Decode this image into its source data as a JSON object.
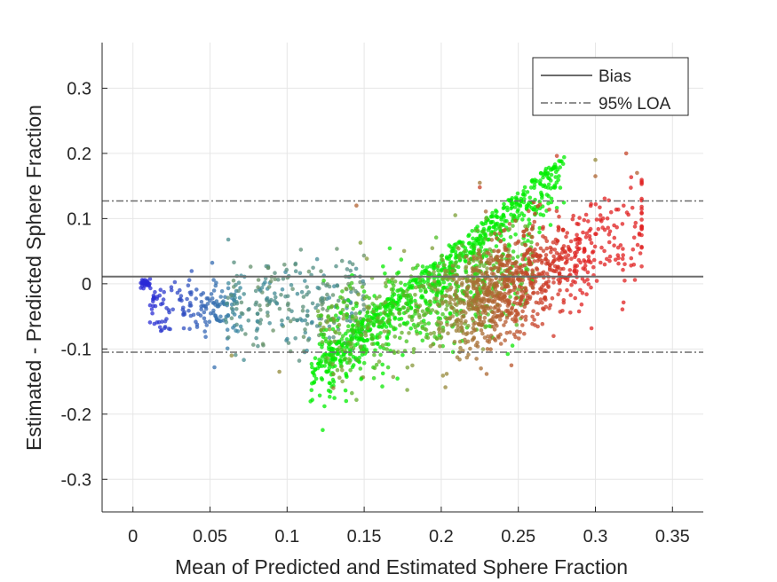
{
  "chart_data": {
    "type": "scatter",
    "title": "",
    "xlabel": "Mean of Predicted and Estimated Sphere Fraction",
    "ylabel": "Estimated - Predicted Sphere Fraction",
    "xlim": [
      -0.02,
      0.37
    ],
    "ylim": [
      -0.35,
      0.37
    ],
    "xticks": [
      0,
      0.05,
      0.1,
      0.15,
      0.2,
      0.25,
      0.3,
      0.35
    ],
    "xtick_labels": [
      "0",
      "0.05",
      "0.1",
      "0.15",
      "0.2",
      "0.25",
      "0.3",
      "0.35"
    ],
    "yticks": [
      -0.3,
      -0.2,
      -0.1,
      0,
      0.1,
      0.2,
      0.3
    ],
    "ytick_labels": [
      "-0.3",
      "-0.2",
      "-0.1",
      "0",
      "0.1",
      "0.2",
      "0.3"
    ],
    "grid": true,
    "legend_position": "top-right",
    "lines": [
      {
        "name": "Bias",
        "y": 0.011,
        "style": "solid",
        "color": "#6b6b6b"
      },
      {
        "name": "95% LOA",
        "y": 0.127,
        "style": "dashdot",
        "color": "#6b6b6b"
      },
      {
        "name": "95% LOA",
        "y": -0.105,
        "style": "dashdot",
        "color": "#6b6b6b"
      }
    ],
    "legend": [
      {
        "label": "Bias",
        "style": "solid"
      },
      {
        "label": "95% LOA",
        "style": "dashdot"
      }
    ],
    "color_groups": [
      {
        "color": "#2a2ad6",
        "x_range": [
          0.003,
          0.06
        ],
        "y_range": [
          -0.06,
          0.04
        ]
      },
      {
        "color": "#3a8aa0",
        "x_range": [
          0.05,
          0.14
        ],
        "y_range": [
          -0.11,
          0.07
        ]
      },
      {
        "color": "#00f000",
        "x_range": [
          0.12,
          0.28
        ],
        "y_range": [
          -0.12,
          0.2
        ]
      },
      {
        "color": "#8a9a3a",
        "x_range": [
          0.12,
          0.26
        ],
        "y_range": [
          -0.16,
          0.1
        ]
      },
      {
        "color": "#e02020",
        "x_range": [
          0.2,
          0.33
        ],
        "y_range": [
          -0.09,
          0.17
        ]
      }
    ]
  }
}
